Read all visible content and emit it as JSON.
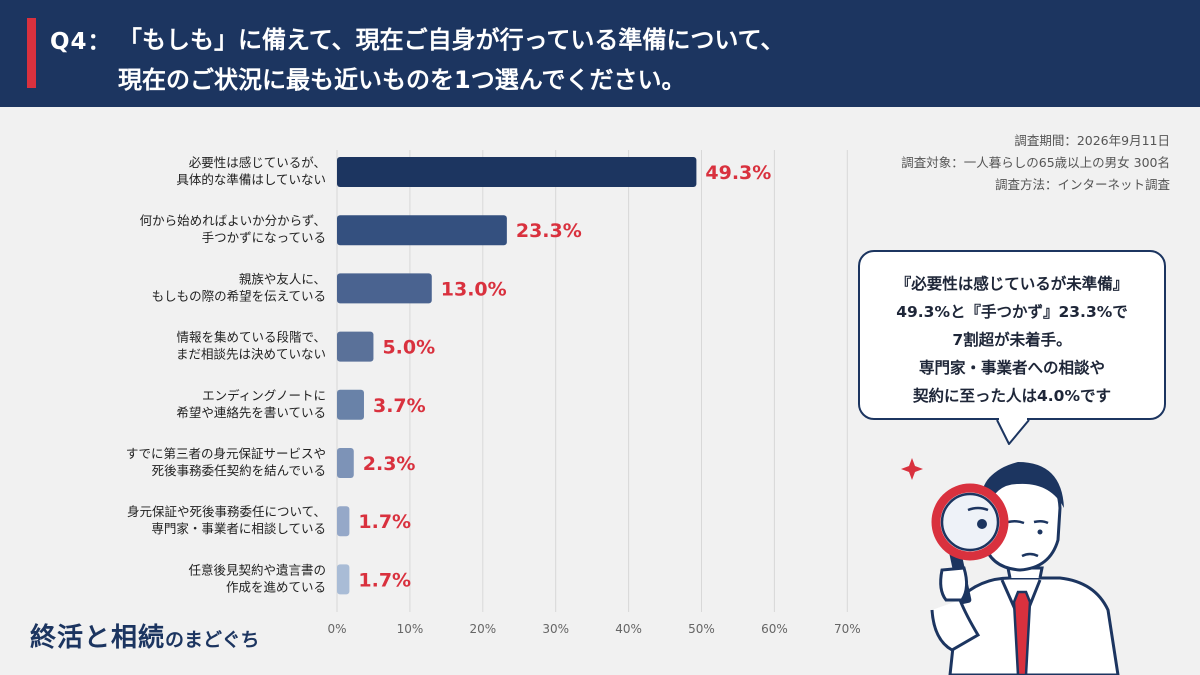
{
  "header": {
    "q_number": "Q4：",
    "question_line1": "「もしも」に備えて、現在ご自身が行っている準備について、",
    "question_line2": "現在のご状況に最も近いものを1つ選んでください。"
  },
  "survey": {
    "period": "調査期間：2026年9月11日",
    "target": "調査対象：一人暮らしの65歳以上の男女  300名",
    "method": "調査方法：インターネット調査"
  },
  "callout": {
    "lines": [
      "『必要性は感じているが未準備』",
      "49.3%と『手つかず』23.3%で",
      "7割超が未着手。",
      "専門家・事業者への相談や",
      "契約に至った人は4.0%です"
    ]
  },
  "logo": {
    "main": "終活と相続",
    "sub": "のまどぐち"
  },
  "colors": {
    "header_bg": "#1c3560",
    "accent_red": "#d9313e",
    "value_label": "#d9313e",
    "bar_gradient": [
      "#1c3560",
      "#34507f",
      "#4a6390",
      "#5a7199",
      "#6982a8",
      "#7d93b7",
      "#95a8c8",
      "#a9bcd6"
    ]
  },
  "chart_data": {
    "type": "bar",
    "orientation": "horizontal",
    "categories": [
      [
        "必要性は感じているが、",
        "具体的な準備はしていない"
      ],
      [
        "何から始めればよいか分からず、",
        "手つかずになっている"
      ],
      [
        "親族や友人に、",
        "もしもの際の希望を伝えている"
      ],
      [
        "情報を集めている段階で、",
        "まだ相談先は決めていない"
      ],
      [
        "エンディングノートに",
        "希望や連絡先を書いている"
      ],
      [
        "すでに第三者の身元保証サービスや",
        "死後事務委任契約を結んでいる"
      ],
      [
        "身元保証や死後事務委任について、",
        "専門家・事業者に相談している"
      ],
      [
        "任意後見契約や遺言書の",
        "作成を進めている"
      ]
    ],
    "values": [
      49.3,
      23.3,
      13.0,
      5.0,
      3.7,
      2.3,
      1.7,
      1.7
    ],
    "value_labels": [
      "49.3%",
      "23.3%",
      "13.0%",
      "5.0%",
      "3.7%",
      "2.3%",
      "1.7%",
      "1.7%"
    ],
    "xlim": [
      0,
      70
    ],
    "xticks": [
      "0%",
      "10%",
      "20%",
      "30%",
      "40%",
      "50%",
      "60%",
      "70%"
    ],
    "grid": true
  }
}
